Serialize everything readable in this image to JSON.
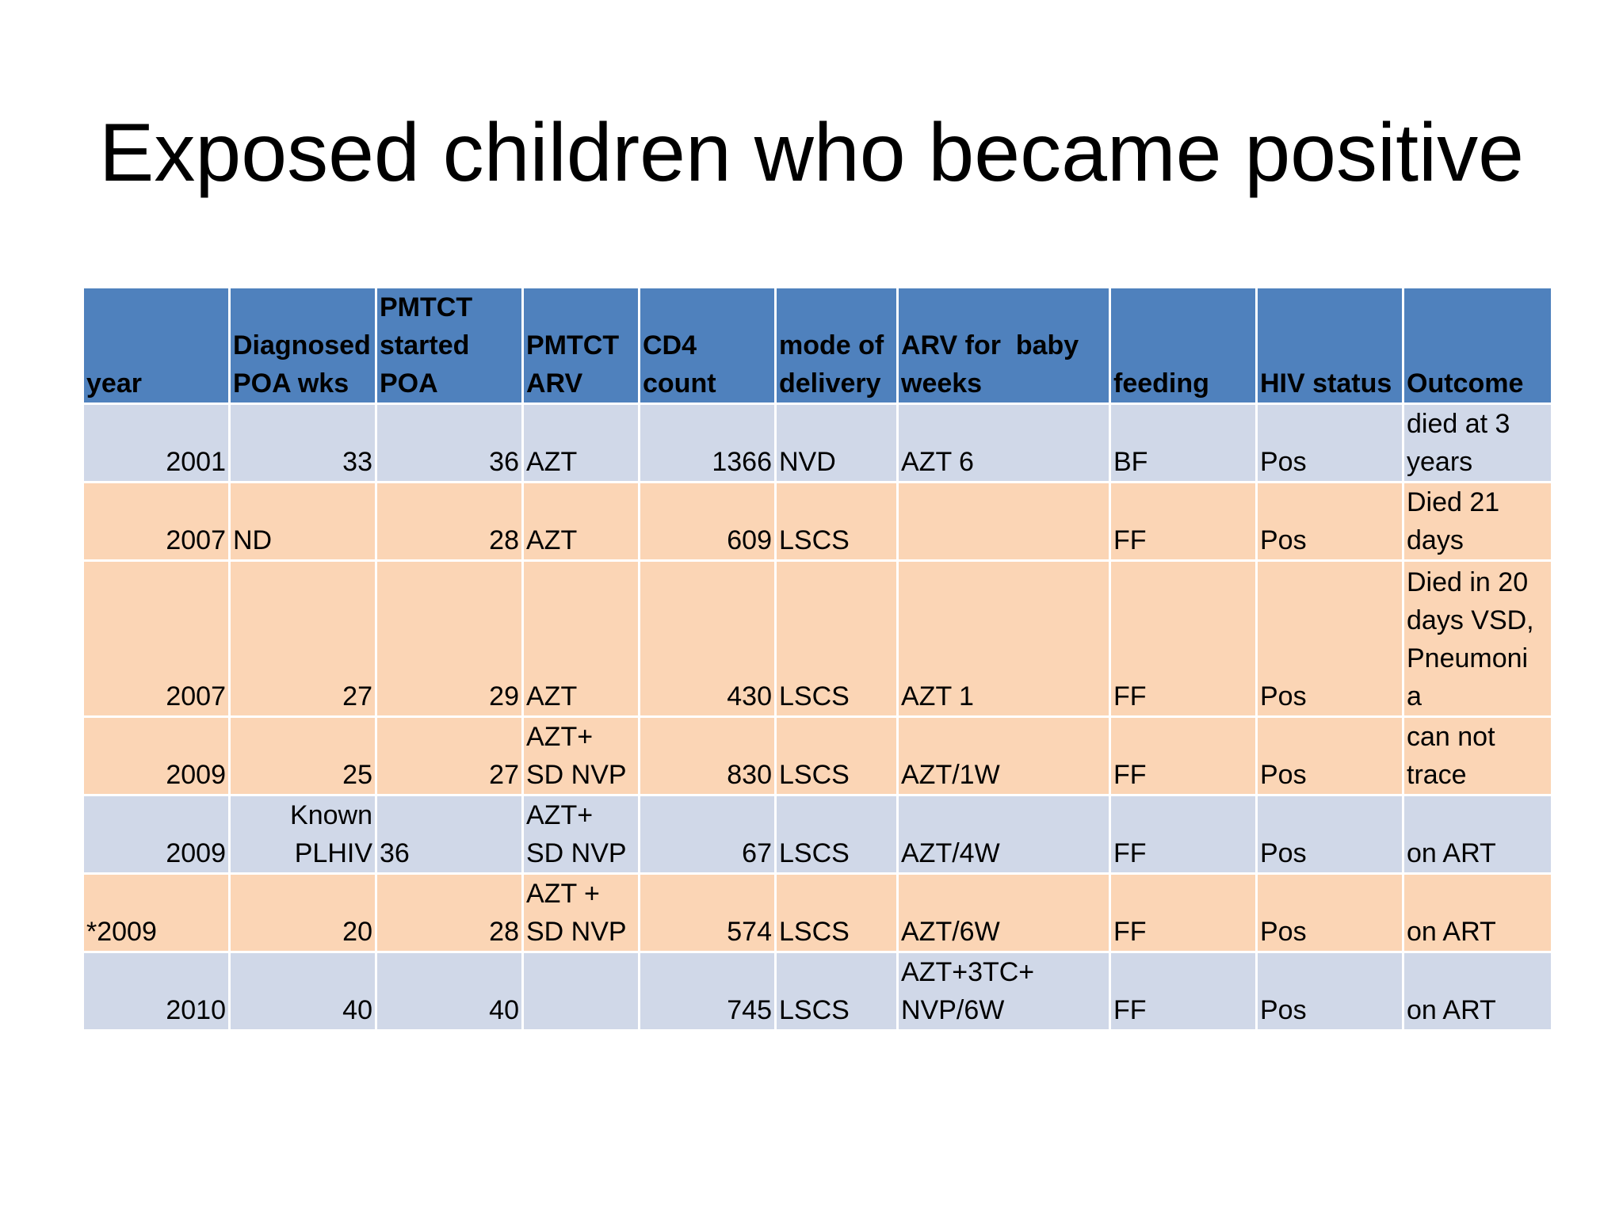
{
  "title": "Exposed children who became positive",
  "table": {
    "headers": {
      "year": [
        "year"
      ],
      "diagnosed": [
        "Diagnosed",
        "POA wks"
      ],
      "pmtct_started": [
        "PMTCT",
        "started",
        "POA"
      ],
      "pmtct_arv": [
        "PMTCT",
        "ARV"
      ],
      "cd4": [
        "CD4",
        "count"
      ],
      "mode": [
        "mode of",
        "delivery"
      ],
      "arv_baby": [
        "ARV for  baby",
        "weeks"
      ],
      "feeding": [
        "feeding"
      ],
      "hiv_status": [
        "HIV status"
      ],
      "outcome": [
        "Outcome"
      ]
    },
    "rows": [
      {
        "year": "2001",
        "diagnosed": "33",
        "started": "36",
        "arv": "AZT",
        "cd4": "1366",
        "mode": "NVD",
        "arv_baby": "AZT 6",
        "feeding": "BF",
        "hiv": "Pos",
        "outcome": "died at 3 years"
      },
      {
        "year": "2007",
        "diagnosed": "ND",
        "started": "28",
        "arv": "AZT",
        "cd4": "609",
        "mode": "LSCS",
        "arv_baby": "",
        "feeding": "FF",
        "hiv": "Pos",
        "outcome": "Died 21 days"
      },
      {
        "year": "2007",
        "diagnosed": "27",
        "started": "29",
        "arv": "AZT",
        "cd4": "430",
        "mode": "LSCS",
        "arv_baby": "AZT 1",
        "feeding": "FF",
        "hiv": "Pos",
        "outcome": "Died in 20 days VSD, Pneumoni a"
      },
      {
        "year": "2009",
        "diagnosed": "25",
        "started": "27",
        "arv": "AZT+ SD NVP",
        "cd4": "830",
        "mode": "LSCS",
        "arv_baby": "AZT/1W",
        "feeding": "FF",
        "hiv": "Pos",
        "outcome": "can not trace"
      },
      {
        "year": "2009",
        "diagnosed": "Known PLHIV",
        "started": "36",
        "arv": "AZT+ SD NVP",
        "cd4": "67",
        "mode": "LSCS",
        "arv_baby": "AZT/4W",
        "feeding": "FF",
        "hiv": "Pos",
        "outcome": "on ART"
      },
      {
        "year": "*2009",
        "diagnosed": "20",
        "started": "28",
        "arv": "AZT + SD NVP",
        "cd4": "574",
        "mode": "LSCS",
        "arv_baby": "AZT/6W",
        "feeding": "FF",
        "hiv": "Pos",
        "outcome": "on ART"
      },
      {
        "year": "2010",
        "diagnosed": "40",
        "started": "40",
        "arv": "",
        "cd4": "745",
        "mode": "LSCS",
        "arv_baby": "AZT+3TC+ NVP/6W",
        "feeding": "FF",
        "hiv": "Pos",
        "outcome": "on ART"
      }
    ],
    "colors": {
      "header": "#4f81bd",
      "row_blue": "#d0d8e8",
      "row_orange": "#fbd5b5"
    }
  }
}
